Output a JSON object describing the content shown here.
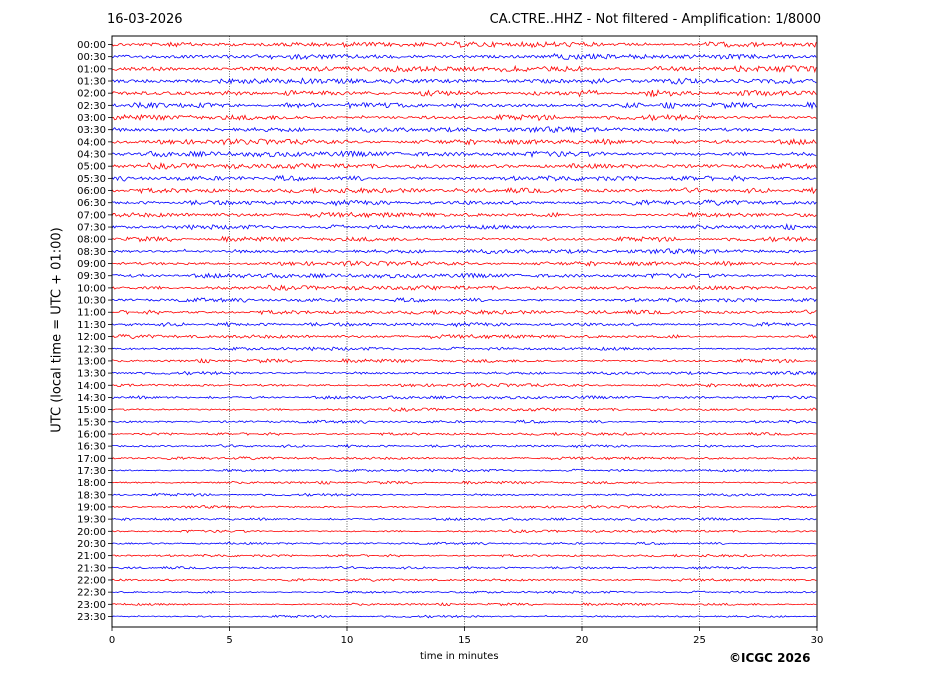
{
  "header": {
    "date": "16-03-2026",
    "station_info": "CA.CTRE..HHZ - Not filtered - Amplification: 1/8000"
  },
  "footer": {
    "copyright": "©ICGC 2026"
  },
  "chart_data": {
    "type": "line",
    "title": "CA.CTRE..HHZ - Not filtered - Amplification: 1/8000",
    "xlabel": "time in minutes",
    "ylabel": "UTC (local time = UTC + 01:00)",
    "xlim": [
      0,
      30
    ],
    "x_ticks": [
      "0",
      "5",
      "10",
      "15",
      "20",
      "25",
      "30"
    ],
    "x_tick_values": [
      0,
      5,
      10,
      15,
      20,
      25,
      30
    ],
    "grid": "vertical dotted lines at each x tick",
    "row_labels": [
      "00:00",
      "00:30",
      "01:00",
      "01:30",
      "02:00",
      "02:30",
      "03:00",
      "03:30",
      "04:00",
      "04:30",
      "05:00",
      "05:30",
      "06:00",
      "06:30",
      "07:00",
      "07:30",
      "08:00",
      "08:30",
      "09:00",
      "09:30",
      "10:00",
      "10:30",
      "11:00",
      "11:30",
      "12:00",
      "12:30",
      "13:00",
      "13:30",
      "14:00",
      "14:30",
      "15:00",
      "15:30",
      "16:00",
      "16:30",
      "17:00",
      "17:30",
      "18:00",
      "18:30",
      "19:00",
      "19:30",
      "20:00",
      "20:30",
      "21:00",
      "21:30",
      "22:00",
      "22:30",
      "23:00",
      "23:30"
    ],
    "trace_colors": [
      "#ff0000",
      "#0000ff"
    ],
    "trace_color_pattern": "alternating starting with red",
    "row_activity": [
      1.0,
      1.0,
      1.05,
      1.05,
      1.05,
      1.0,
      1.0,
      0.95,
      0.95,
      1.0,
      0.95,
      0.95,
      0.9,
      0.9,
      0.9,
      0.85,
      0.85,
      0.85,
      0.8,
      0.8,
      0.8,
      0.75,
      0.75,
      0.7,
      0.7,
      0.65,
      0.65,
      0.6,
      0.6,
      0.55,
      0.55,
      0.55,
      0.5,
      0.5,
      0.5,
      0.5,
      0.5,
      0.5,
      0.45,
      0.45,
      0.45,
      0.45,
      0.45,
      0.45,
      0.45,
      0.45,
      0.45,
      0.45
    ]
  }
}
